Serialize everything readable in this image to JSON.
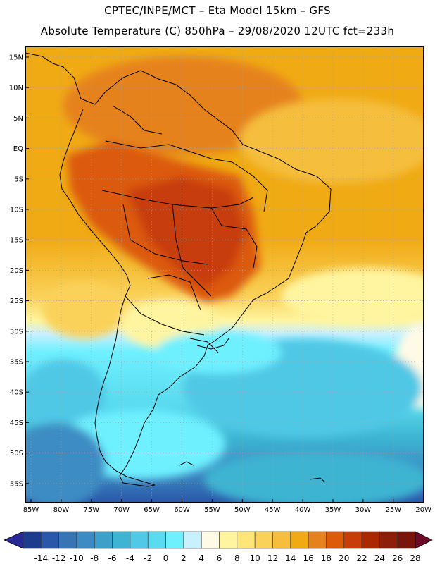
{
  "header": {
    "title_line1": "CPTEC/INPE/MCT –  Eta Model 15km – GFS",
    "title_line2": "Absolute Temperature (C) 850hPa – 29/08/2020 12UTC fct=233h"
  },
  "map": {
    "lat_labels": [
      "15N",
      "10N",
      "5N",
      "EQ",
      "5S",
      "10S",
      "15S",
      "20S",
      "25S",
      "30S",
      "35S",
      "40S",
      "45S",
      "50S",
      "55S"
    ],
    "lon_labels": [
      "85W",
      "80W",
      "75W",
      "70W",
      "65W",
      "60W",
      "55W",
      "50W",
      "45W",
      "40W",
      "35W",
      "30W",
      "25W",
      "20W"
    ],
    "variable": "Absolute Temperature (C) 850hPa"
  },
  "colorbar": {
    "labels": [
      "-14",
      "-12",
      "-10",
      "-8",
      "-6",
      "-4",
      "-2",
      "0",
      "2",
      "4",
      "6",
      "8",
      "10",
      "12",
      "14",
      "16",
      "18",
      "20",
      "22",
      "24",
      "26",
      "28"
    ],
    "colors": [
      "#1e3c8c",
      "#2a57a8",
      "#3774b4",
      "#3c8cc3",
      "#3ca0c8",
      "#3cb4d2",
      "#50c8e6",
      "#5adcf0",
      "#6ef0ff",
      "#c8f0ff",
      "#fffae6",
      "#fff5a0",
      "#ffe678",
      "#fad25a",
      "#f5be3c",
      "#f0aa14",
      "#e6821e",
      "#dc5a0a",
      "#c83c0a",
      "#aa2800",
      "#8c1e0a",
      "#78140a"
    ],
    "arrow_low_color": "#282896",
    "arrow_high_color": "#6e0a28"
  }
}
